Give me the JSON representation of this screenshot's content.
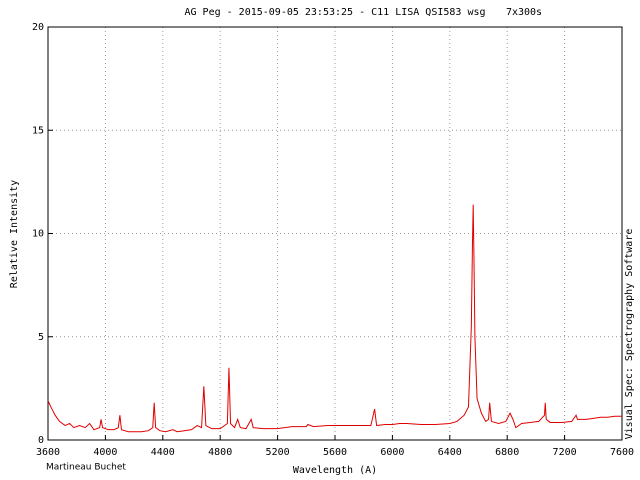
{
  "chart_data": {
    "type": "line",
    "title": "AG Peg - 2015-09-05 23:53:25 - C11 LISA  QSI583 wsg",
    "subtitle": "7x300s",
    "xlabel": "Wavelength (A)",
    "ylabel": "Relative Intensity",
    "annotations": [
      "Martineau Buchet",
      "Visual Spec: Spectrography Software"
    ],
    "xlim": [
      3600,
      7600
    ],
    "ylim": [
      0,
      20
    ],
    "xticks": [
      3600,
      4000,
      4400,
      4800,
      5200,
      5600,
      6000,
      6400,
      6800,
      7200,
      7600
    ],
    "yticks": [
      0,
      5,
      10,
      15,
      20
    ],
    "grid": true,
    "series": [
      {
        "name": "AG Peg",
        "color": "#e00000",
        "x": [
          3600,
          3620,
          3650,
          3680,
          3720,
          3750,
          3780,
          3820,
          3860,
          3890,
          3920,
          3960,
          3970,
          3980,
          4020,
          4060,
          4090,
          4101,
          4112,
          4160,
          4200,
          4250,
          4300,
          4330,
          4340,
          4350,
          4380,
          4420,
          4471,
          4500,
          4550,
          4600,
          4640,
          4670,
          4686,
          4700,
          4740,
          4800,
          4850,
          4861,
          4872,
          4900,
          4922,
          4940,
          4980,
          5016,
          5030,
          5100,
          5200,
          5300,
          5400,
          5411,
          5450,
          5550,
          5650,
          5750,
          5850,
          5876,
          5890,
          5950,
          6000,
          6050,
          6100,
          6200,
          6300,
          6400,
          6450,
          6500,
          6530,
          6550,
          6558,
          6563,
          6568,
          6575,
          6590,
          6620,
          6650,
          6670,
          6678,
          6690,
          6740,
          6790,
          6820,
          6840,
          6860,
          6900,
          6960,
          7020,
          7060,
          7065,
          7072,
          7100,
          7180,
          7250,
          7280,
          7290,
          7350,
          7400,
          7450,
          7500,
          7550,
          7600
        ],
        "values": [
          1.9,
          1.6,
          1.2,
          0.9,
          0.7,
          0.8,
          0.6,
          0.7,
          0.6,
          0.8,
          0.5,
          0.6,
          1.0,
          0.6,
          0.5,
          0.5,
          0.6,
          1.2,
          0.5,
          0.4,
          0.4,
          0.4,
          0.45,
          0.6,
          1.8,
          0.6,
          0.45,
          0.4,
          0.5,
          0.4,
          0.45,
          0.5,
          0.7,
          0.6,
          2.6,
          0.7,
          0.55,
          0.55,
          0.8,
          3.5,
          0.8,
          0.6,
          1.0,
          0.6,
          0.55,
          1.0,
          0.6,
          0.55,
          0.55,
          0.65,
          0.65,
          0.75,
          0.65,
          0.7,
          0.7,
          0.7,
          0.7,
          1.5,
          0.7,
          0.75,
          0.75,
          0.8,
          0.8,
          0.75,
          0.75,
          0.8,
          0.9,
          1.2,
          1.6,
          5.5,
          9.5,
          11.4,
          9.0,
          5.0,
          2.0,
          1.3,
          0.9,
          1.0,
          1.8,
          0.9,
          0.8,
          0.9,
          1.3,
          1.0,
          0.6,
          0.8,
          0.85,
          0.9,
          1.2,
          1.8,
          1.0,
          0.85,
          0.85,
          0.9,
          1.2,
          1.0,
          1.0,
          1.05,
          1.1,
          1.1,
          1.15,
          1.15
        ]
      }
    ]
  }
}
